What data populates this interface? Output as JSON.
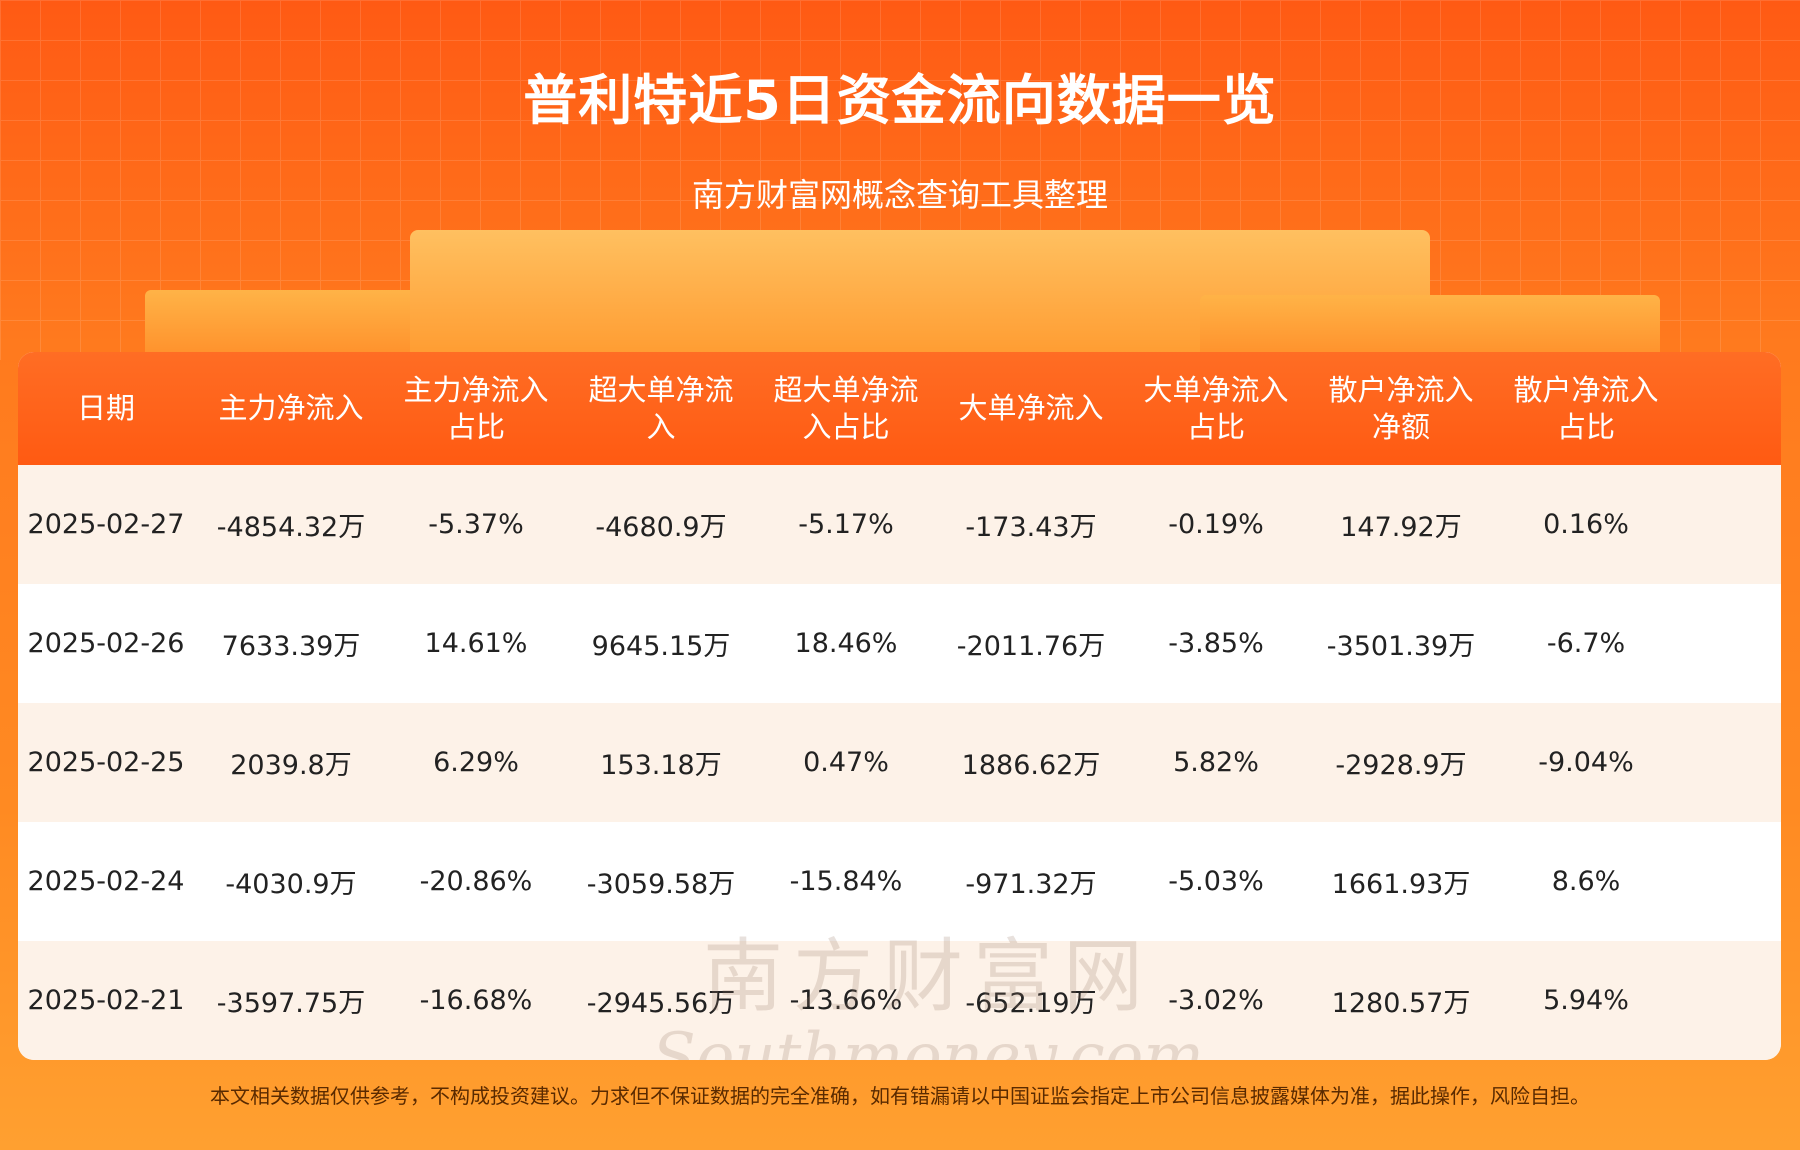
{
  "header": {
    "title": "普利特近5日资金流向数据一览",
    "subtitle": "南方财富网概念查询工具整理"
  },
  "table": {
    "columns": [
      "日期",
      "主力净流入",
      "主力净流入占比",
      "超大单净流入",
      "超大单净流入占比",
      "大单净流入",
      "大单净流入占比",
      "散户净流入净额",
      "散户净流入占比"
    ],
    "rows": [
      [
        "2025-02-27",
        "-4854.32万",
        "-5.37%",
        "-4680.9万",
        "-5.17%",
        "-173.43万",
        "-0.19%",
        "147.92万",
        "0.16%"
      ],
      [
        "2025-02-26",
        "7633.39万",
        "14.61%",
        "9645.15万",
        "18.46%",
        "-2011.76万",
        "-3.85%",
        "-3501.39万",
        "-6.7%"
      ],
      [
        "2025-02-25",
        "2039.8万",
        "6.29%",
        "153.18万",
        "0.47%",
        "1886.62万",
        "5.82%",
        "-2928.9万",
        "-9.04%"
      ],
      [
        "2025-02-24",
        "-4030.9万",
        "-20.86%",
        "-3059.58万",
        "-15.84%",
        "-971.32万",
        "-5.03%",
        "1661.93万",
        "8.6%"
      ],
      [
        "2025-02-21",
        "-3597.75万",
        "-16.68%",
        "-2945.56万",
        "-13.66%",
        "-652.19万",
        "-3.02%",
        "1280.57万",
        "5.94%"
      ]
    ]
  },
  "watermark": {
    "cn": "南方财富网",
    "en": "Southmoney.com"
  },
  "footer": "本文相关数据仅供参考，不构成投资建议。力求但不保证数据的完全准确，如有错漏请以中国证监会指定上市公司信息披露媒体为准，据此操作，风险自担。"
}
